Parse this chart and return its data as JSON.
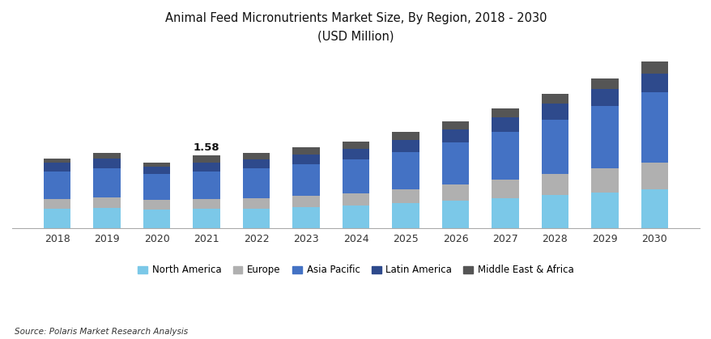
{
  "title_line1": "Animal Feed Micronutrients Market Size, By Region, 2018 - 2030",
  "title_line2": "(USD Million)",
  "source": "Source: Polaris Market Research Analysis",
  "years": [
    2018,
    2019,
    2020,
    2021,
    2022,
    2023,
    2024,
    2025,
    2026,
    2027,
    2028,
    2029,
    2030
  ],
  "regions": [
    "North America",
    "Europe",
    "Asia Pacific",
    "Latin America",
    "Middle East & Africa"
  ],
  "colors": [
    "#7bc8e8",
    "#b0b0b0",
    "#4472c4",
    "#2e4a8c",
    "#555555"
  ],
  "annotation_year": 2021,
  "annotation_text": "1.58",
  "data": {
    "North America": [
      0.42,
      0.44,
      0.4,
      0.42,
      0.43,
      0.46,
      0.49,
      0.54,
      0.6,
      0.65,
      0.72,
      0.78,
      0.85
    ],
    "Europe": [
      0.22,
      0.23,
      0.21,
      0.22,
      0.23,
      0.24,
      0.26,
      0.3,
      0.35,
      0.4,
      0.46,
      0.52,
      0.58
    ],
    "Asia Pacific": [
      0.6,
      0.64,
      0.57,
      0.6,
      0.64,
      0.69,
      0.74,
      0.82,
      0.92,
      1.05,
      1.18,
      1.35,
      1.52
    ],
    "Latin America": [
      0.18,
      0.2,
      0.16,
      0.18,
      0.2,
      0.22,
      0.24,
      0.26,
      0.28,
      0.31,
      0.34,
      0.37,
      0.41
    ],
    "Middle East & Africa": [
      0.1,
      0.12,
      0.09,
      0.16,
      0.14,
      0.15,
      0.16,
      0.17,
      0.18,
      0.2,
      0.22,
      0.24,
      0.26
    ]
  },
  "ylim": [
    0,
    3.8
  ],
  "bar_width": 0.55,
  "figsize": [
    8.79,
    4.19
  ],
  "dpi": 100,
  "background_color": "#ffffff"
}
